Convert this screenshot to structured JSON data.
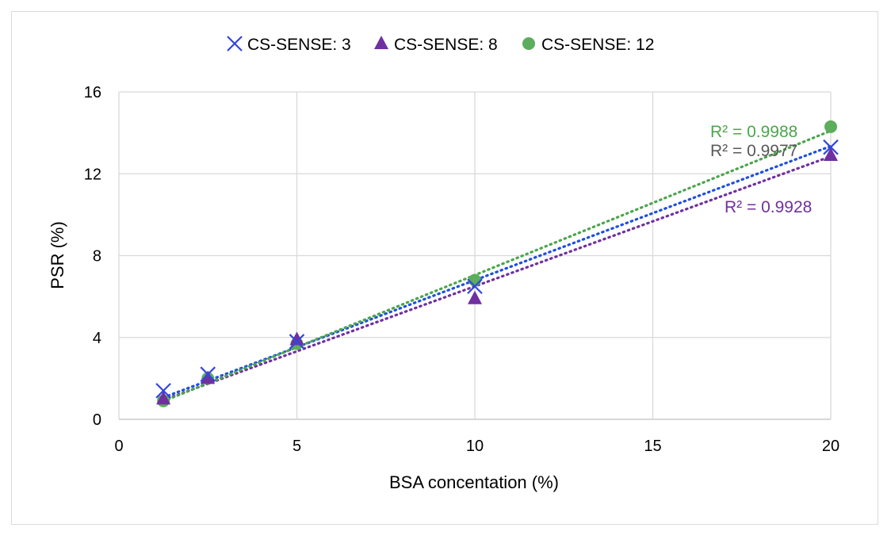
{
  "chart_data": {
    "type": "scatter",
    "title": "",
    "xlabel": "BSA concentation (%)",
    "ylabel": "PSR (%)",
    "xlim": [
      0,
      20
    ],
    "ylim": [
      0,
      16
    ],
    "xticks": [
      0,
      5,
      10,
      15,
      20
    ],
    "yticks": [
      0,
      4,
      8,
      12,
      16
    ],
    "grid": true,
    "legend_position": "top",
    "trendline": "linear, dotted",
    "series": [
      {
        "name": "CS-SENSE: 3",
        "marker": "x",
        "color": "#3246d9",
        "trend_color": "#1f4fe0",
        "x": [
          1.25,
          2.5,
          5,
          10,
          20
        ],
        "y": [
          1.4,
          2.2,
          3.8,
          6.5,
          13.3
        ],
        "r2_label": "R² = 0.9977",
        "r2_label_color": "#595959",
        "trend": [
          0.655,
          0.25
        ]
      },
      {
        "name": "CS-SENSE: 8",
        "marker": "triangle",
        "color": "#7030a0",
        "trend_color": "#7030a0",
        "x": [
          1.25,
          2.5,
          5,
          10,
          20
        ],
        "y": [
          1.0,
          2.0,
          3.9,
          5.9,
          12.9
        ],
        "r2_label": "R² = 0.9928",
        "r2_label_color": "#7030a0",
        "trend": [
          0.635,
          0.15
        ]
      },
      {
        "name": "CS-SENSE: 12",
        "marker": "circle",
        "color": "#5cad5c",
        "trend_color": "#4ca54c",
        "x": [
          1.25,
          2.5,
          5,
          10,
          20
        ],
        "y": [
          0.9,
          2.0,
          3.7,
          6.8,
          14.3
        ],
        "r2_label": "R² = 0.9988",
        "r2_label_color": "#4ca54c",
        "trend": [
          0.705,
          0.0
        ]
      }
    ]
  }
}
